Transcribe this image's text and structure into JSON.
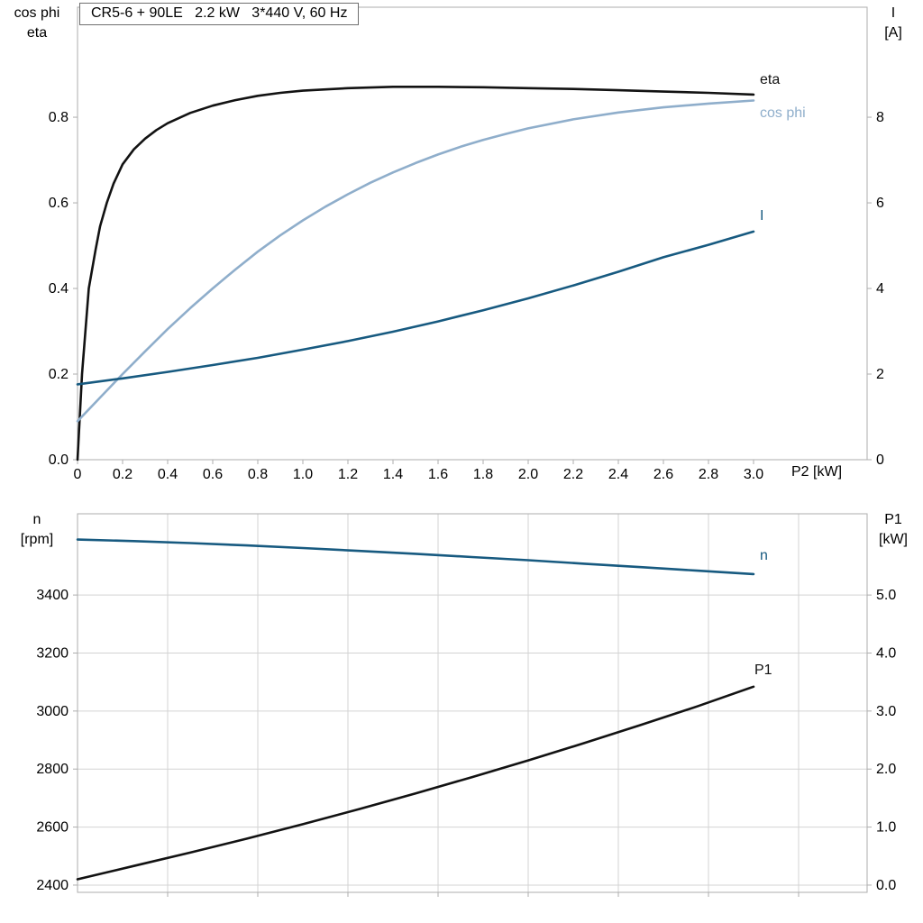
{
  "title_box": {
    "text": "CR5-6 + 90LE   2.2 kW   3*440 V, 60 Hz"
  },
  "colors": {
    "black": "#121212",
    "light_blue": "#8FAECB",
    "dark_blue": "#175A80",
    "frame": "#ADADAD",
    "grid": "#D3D3D3"
  },
  "axis_corner_labels": {
    "top_left_line1": "cos phi",
    "top_left_line2": "eta",
    "top_right_line1": "I",
    "top_right_line2": "[A]",
    "bottom_left_line1": "n",
    "bottom_left_line2": "[rpm]",
    "bottom_right_line1": "P1",
    "bottom_right_line2": "[kW]",
    "x_axis_label": "P2 [kW]"
  },
  "curve_labels": {
    "eta": "eta",
    "cos_phi": "cos phi",
    "current": "I",
    "speed": "n",
    "power": "P1"
  },
  "chart_data": [
    {
      "type": "line",
      "title": "CR5-6 + 90LE 2.2 kW 3*440 V, 60 Hz",
      "xlabel": "P2 [kW]",
      "ylabel_left": "cos phi / eta",
      "ylabel_right": "I [A]",
      "xlim": [
        0,
        3.504
      ],
      "ylim_left": [
        0,
        1.057
      ],
      "ylim_right": [
        0,
        10.57
      ],
      "grid_x": [],
      "grid_y": [],
      "x_ticks": [
        {
          "v": 0,
          "label": "0"
        },
        {
          "v": 0.2,
          "label": "0.2"
        },
        {
          "v": 0.4,
          "label": "0.4"
        },
        {
          "v": 0.6,
          "label": "0.6"
        },
        {
          "v": 0.8,
          "label": "0.8"
        },
        {
          "v": 1.0,
          "label": "1.0"
        },
        {
          "v": 1.2,
          "label": "1.2"
        },
        {
          "v": 1.4,
          "label": "1.4"
        },
        {
          "v": 1.6,
          "label": "1.6"
        },
        {
          "v": 1.8,
          "label": "1.8"
        },
        {
          "v": 2.0,
          "label": "2.0"
        },
        {
          "v": 2.2,
          "label": "2.2"
        },
        {
          "v": 2.4,
          "label": "2.4"
        },
        {
          "v": 2.6,
          "label": "2.6"
        },
        {
          "v": 2.8,
          "label": "2.8"
        },
        {
          "v": 3.0,
          "label": "3.0"
        }
      ],
      "y_ticks_left": [
        {
          "v": 0.0,
          "label": "0.0"
        },
        {
          "v": 0.2,
          "label": "0.2"
        },
        {
          "v": 0.4,
          "label": "0.4"
        },
        {
          "v": 0.6,
          "label": "0.6"
        },
        {
          "v": 0.8,
          "label": "0.8"
        }
      ],
      "y_ticks_right": [
        {
          "v": 0,
          "label": "0"
        },
        {
          "v": 2,
          "label": "2"
        },
        {
          "v": 4,
          "label": "4"
        },
        {
          "v": 6,
          "label": "6"
        },
        {
          "v": 8,
          "label": "8"
        }
      ],
      "series": [
        {
          "name": "eta",
          "axis": "left",
          "color_key": "black",
          "points": [
            [
              0,
              0
            ],
            [
              0.02,
              0.2
            ],
            [
              0.05,
              0.4
            ],
            [
              0.08,
              0.49
            ],
            [
              0.1,
              0.545
            ],
            [
              0.13,
              0.6
            ],
            [
              0.16,
              0.645
            ],
            [
              0.2,
              0.69
            ],
            [
              0.25,
              0.725
            ],
            [
              0.3,
              0.75
            ],
            [
              0.35,
              0.77
            ],
            [
              0.4,
              0.786
            ],
            [
              0.5,
              0.81
            ],
            [
              0.6,
              0.827
            ],
            [
              0.7,
              0.84
            ],
            [
              0.8,
              0.85
            ],
            [
              0.9,
              0.857
            ],
            [
              1.0,
              0.862
            ],
            [
              1.2,
              0.868
            ],
            [
              1.4,
              0.871
            ],
            [
              1.6,
              0.871
            ],
            [
              1.8,
              0.87
            ],
            [
              2.0,
              0.868
            ],
            [
              2.2,
              0.866
            ],
            [
              2.4,
              0.863
            ],
            [
              2.6,
              0.86
            ],
            [
              2.8,
              0.857
            ],
            [
              3.0,
              0.853
            ]
          ]
        },
        {
          "name": "cos phi",
          "axis": "left",
          "color_key": "light_blue",
          "points": [
            [
              0,
              0.09
            ],
            [
              0.1,
              0.145
            ],
            [
              0.2,
              0.2
            ],
            [
              0.3,
              0.253
            ],
            [
              0.4,
              0.305
            ],
            [
              0.5,
              0.354
            ],
            [
              0.6,
              0.4
            ],
            [
              0.7,
              0.444
            ],
            [
              0.8,
              0.486
            ],
            [
              0.9,
              0.524
            ],
            [
              1.0,
              0.559
            ],
            [
              1.1,
              0.591
            ],
            [
              1.2,
              0.62
            ],
            [
              1.3,
              0.647
            ],
            [
              1.4,
              0.671
            ],
            [
              1.5,
              0.693
            ],
            [
              1.6,
              0.713
            ],
            [
              1.7,
              0.731
            ],
            [
              1.8,
              0.747
            ],
            [
              1.9,
              0.761
            ],
            [
              2.0,
              0.774
            ],
            [
              2.2,
              0.795
            ],
            [
              2.4,
              0.811
            ],
            [
              2.6,
              0.823
            ],
            [
              2.8,
              0.832
            ],
            [
              3.0,
              0.839
            ]
          ]
        },
        {
          "name": "I",
          "axis": "right",
          "color_key": "dark_blue",
          "points": [
            [
              0,
              1.76
            ],
            [
              0.2,
              1.9
            ],
            [
              0.4,
              2.05
            ],
            [
              0.6,
              2.21
            ],
            [
              0.8,
              2.38
            ],
            [
              1.0,
              2.57
            ],
            [
              1.2,
              2.77
            ],
            [
              1.4,
              2.99
            ],
            [
              1.6,
              3.23
            ],
            [
              1.8,
              3.49
            ],
            [
              2.0,
              3.77
            ],
            [
              2.2,
              4.07
            ],
            [
              2.4,
              4.39
            ],
            [
              2.6,
              4.73
            ],
            [
              2.8,
              5.02
            ],
            [
              3.0,
              5.33
            ]
          ]
        }
      ]
    },
    {
      "type": "line",
      "title": "",
      "xlabel": "P2 [kW]",
      "ylabel_left": "n [rpm]",
      "ylabel_right": "P1 [kW]",
      "xlim": [
        0,
        3.504
      ],
      "ylim_left": [
        2375,
        3680
      ],
      "ylim_right": [
        -0.125,
        6.4
      ],
      "grid_x": [
        0.4,
        0.8,
        1.2,
        1.6,
        2.0,
        2.4,
        2.8,
        3.2
      ],
      "grid_y": [
        2400,
        2600,
        2800,
        3000,
        3200,
        3400
      ],
      "x_ticks": [
        {
          "v": 0.4,
          "label": ""
        },
        {
          "v": 0.8,
          "label": ""
        },
        {
          "v": 1.2,
          "label": ""
        },
        {
          "v": 1.6,
          "label": ""
        },
        {
          "v": 2.0,
          "label": ""
        },
        {
          "v": 2.4,
          "label": ""
        },
        {
          "v": 2.8,
          "label": ""
        },
        {
          "v": 3.2,
          "label": ""
        }
      ],
      "y_ticks_left": [
        {
          "v": 2400,
          "label": "2400"
        },
        {
          "v": 2600,
          "label": "2600"
        },
        {
          "v": 2800,
          "label": "2800"
        },
        {
          "v": 3000,
          "label": "3000"
        },
        {
          "v": 3200,
          "label": "3200"
        },
        {
          "v": 3400,
          "label": "3400"
        }
      ],
      "y_ticks_right": [
        {
          "v": 0,
          "label": "0.0"
        },
        {
          "v": 1,
          "label": "1.0"
        },
        {
          "v": 2,
          "label": "2.0"
        },
        {
          "v": 3,
          "label": "3.0"
        },
        {
          "v": 4,
          "label": "4.0"
        },
        {
          "v": 5,
          "label": "5.0"
        }
      ],
      "series": [
        {
          "name": "n",
          "axis": "left",
          "color_key": "dark_blue",
          "points": [
            [
              0,
              3591
            ],
            [
              0.25,
              3586
            ],
            [
              0.5,
              3579
            ],
            [
              0.75,
              3571
            ],
            [
              1.0,
              3562
            ],
            [
              1.25,
              3552
            ],
            [
              1.5,
              3542
            ],
            [
              1.75,
              3531
            ],
            [
              2.0,
              3520
            ],
            [
              2.25,
              3508
            ],
            [
              2.5,
              3496
            ],
            [
              2.75,
              3484
            ],
            [
              3.0,
              3472
            ]
          ]
        },
        {
          "name": "P1",
          "axis": "right",
          "color_key": "black",
          "points": [
            [
              0,
              0.1
            ],
            [
              0.25,
              0.33
            ],
            [
              0.5,
              0.56
            ],
            [
              0.75,
              0.8
            ],
            [
              1.0,
              1.05
            ],
            [
              1.25,
              1.31
            ],
            [
              1.5,
              1.58
            ],
            [
              1.75,
              1.86
            ],
            [
              2.0,
              2.15
            ],
            [
              2.25,
              2.45
            ],
            [
              2.5,
              2.76
            ],
            [
              2.75,
              3.08
            ],
            [
              3.0,
              3.42
            ]
          ]
        }
      ]
    }
  ]
}
